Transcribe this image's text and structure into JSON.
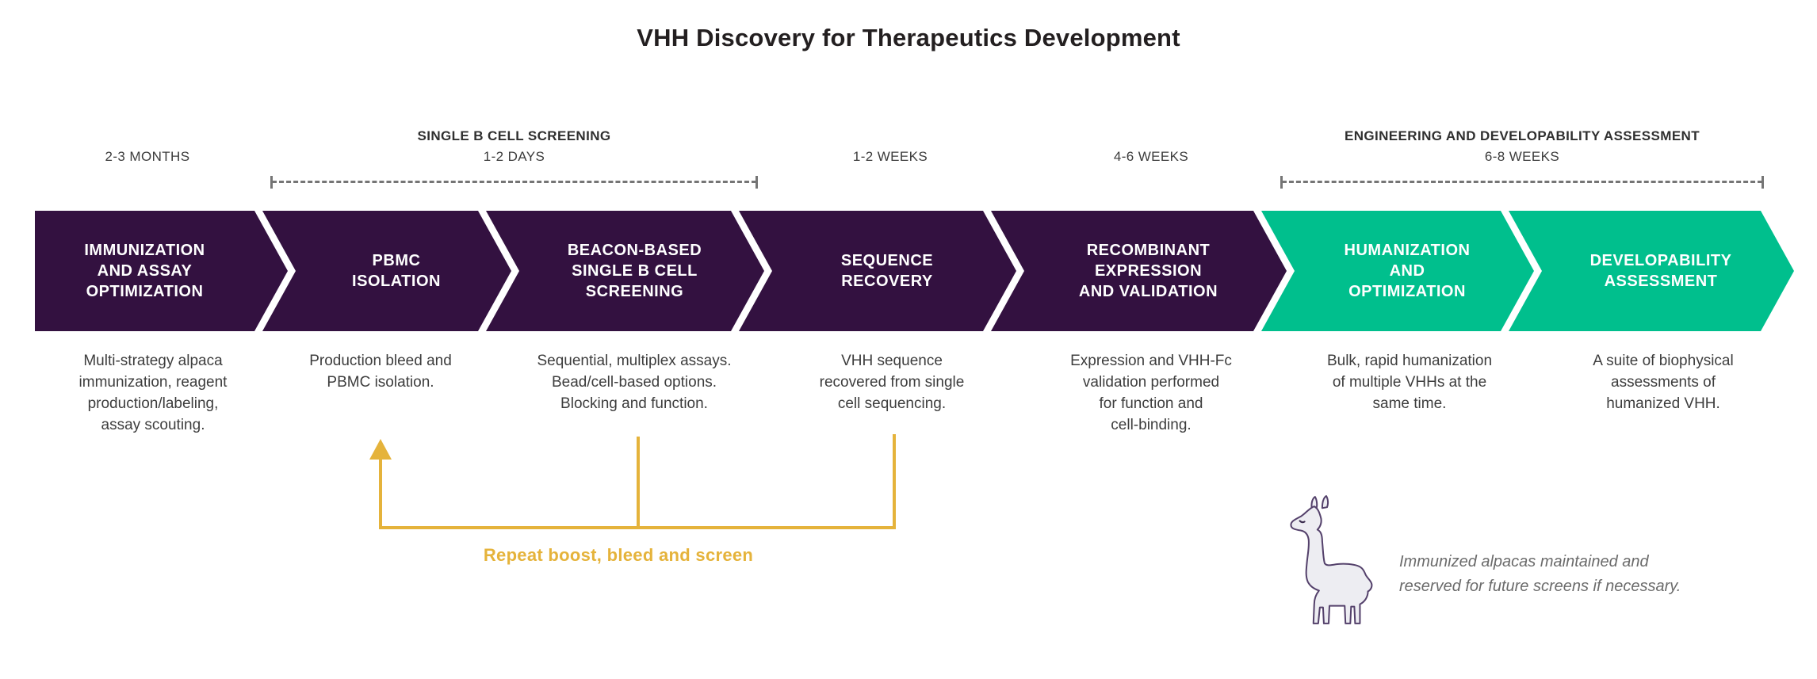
{
  "title": "VHH Discovery for Therapeutics Development",
  "timeline": [
    {
      "phase_label": "",
      "duration": "2-3 MONTHS",
      "has_bracket": false
    },
    {
      "phase_label": "SINGLE B CELL SCREENING",
      "duration": "1-2 DAYS",
      "has_bracket": true
    },
    {
      "phase_label": "",
      "duration": "1-2 WEEKS",
      "has_bracket": false
    },
    {
      "phase_label": "",
      "duration": "4-6 WEEKS",
      "has_bracket": false
    },
    {
      "phase_label": "ENGINEERING AND DEVELOPABILITY ASSESSMENT",
      "duration": "6-8 WEEKS",
      "has_bracket": true
    }
  ],
  "stages": [
    {
      "title": "IMMUNIZATION\nAND ASSAY\nOPTIMIZATION",
      "description": "Multi-strategy alpaca\nimmunization, reagent\nproduction/labeling,\nassay scouting.",
      "color": "#331140"
    },
    {
      "title": "PBMC\nISOLATION",
      "description": "Production bleed and\nPBMC isolation.",
      "color": "#331140"
    },
    {
      "title": "BEACON-BASED\nSINGLE B CELL\nSCREENING",
      "description": "Sequential, multiplex assays.\nBead/cell-based options.\nBlocking and function.",
      "color": "#331140"
    },
    {
      "title": "SEQUENCE\nRECOVERY",
      "description": "VHH sequence\nrecovered from single\ncell sequencing.",
      "color": "#331140"
    },
    {
      "title": "RECOMBINANT\nEXPRESSION\nAND VALIDATION",
      "description": "Expression and VHH-Fc\nvalidation performed\nfor function and\ncell-binding.",
      "color": "#331140"
    },
    {
      "title": "HUMANIZATION\nAND\nOPTIMIZATION",
      "description": "Bulk, rapid humanization\nof multiple VHHs at the\nsame time.",
      "color": "#00BF8D"
    },
    {
      "title": "DEVELOPABILITY\nASSESSMENT",
      "description": "A suite of biophysical\nassessments of\nhumanized VHH.",
      "color": "#00BF8D"
    }
  ],
  "repeat_loop": {
    "label": "Repeat boost, bleed and screen",
    "color": "#E5B33B"
  },
  "alpaca_note": {
    "icon": "alpaca-icon",
    "text": "Immunized alpacas maintained and\nreserved for future screens if necessary."
  },
  "colors": {
    "stage_purple": "#331140",
    "stage_green": "#00BF8D",
    "accent_yellow": "#E5B33B",
    "title_text": "#231F20",
    "body_text": "#3D3D3D",
    "dash_gray": "#757575",
    "note_text": "#6B6B6B",
    "alpaca_outline": "#54416B",
    "alpaca_fill": "#EDEDF2",
    "background": "#FFFFFF"
  }
}
